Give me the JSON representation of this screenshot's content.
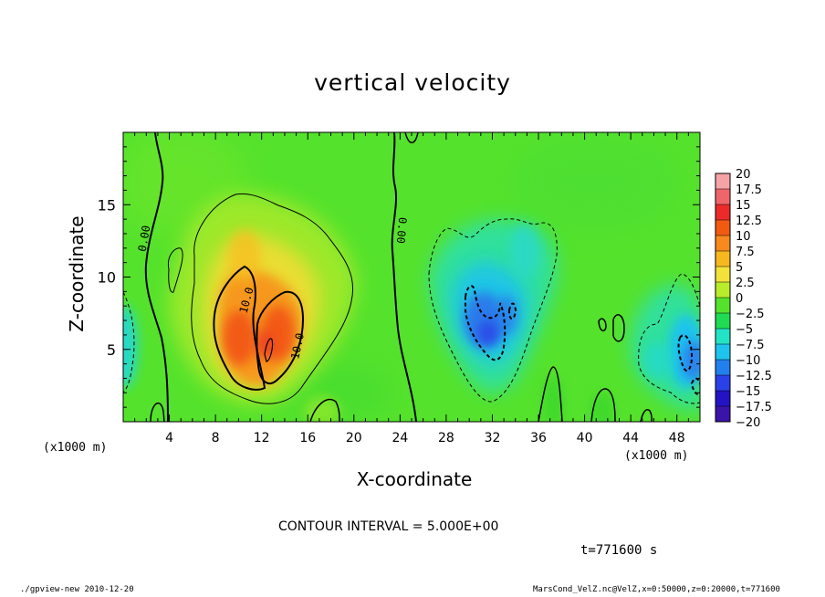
{
  "figure": {
    "program_line": "./gpview-new  2010-12-20",
    "file_line": "MarsCond_VelZ.nc@VelZ,x=0:50000,z=0:20000,t=771600",
    "contour_interval": "CONTOUR INTERVAL = 5.000E+00",
    "time_label": "t=771600 s",
    "x_unit": "(x1000 m)",
    "x_unit_right": "(x1000 m)"
  },
  "chart_data": {
    "type": "heatmap",
    "title": "vertical velocity",
    "xlabel": "X-coordinate",
    "ylabel": "Z-coordinate",
    "x_unit": "(x1000 m)",
    "xlim": [
      0,
      50
    ],
    "ylim": [
      0,
      20
    ],
    "x_ticks": [
      4,
      8,
      12,
      16,
      20,
      24,
      28,
      32,
      36,
      40,
      44,
      48
    ],
    "y_ticks": [
      5,
      10,
      15
    ],
    "colorbar": {
      "labels": [
        "20",
        "17.5",
        "15",
        "12.5",
        "10",
        "7.5",
        "5",
        "2.5",
        "0",
        "-2.5",
        "-5",
        "-7.5",
        "-10",
        "-12.5",
        "-15",
        "-17.5",
        "-20"
      ],
      "colors": [
        "#f6a3a6",
        "#f0656a",
        "#ec2a2a",
        "#f25a12",
        "#f7891e",
        "#f7b81f",
        "#f2e23a",
        "#b9ec2a",
        "#55e22c",
        "#1fdc52",
        "#22e4c5",
        "#1ec3ee",
        "#2280ee",
        "#2a40e8",
        "#2313c4",
        "#3a13a8",
        "#7a16c0"
      ]
    },
    "features": [
      {
        "kind": "updraft",
        "x": 12,
        "z": 6.5,
        "peak": 13
      },
      {
        "kind": "updraft",
        "x": 10.5,
        "z": 9,
        "peak": 6
      },
      {
        "kind": "downdraft",
        "x": 31.5,
        "z": 6.5,
        "peak": -11
      },
      {
        "kind": "downdraft",
        "x": 49.5,
        "z": 4.5,
        "peak": -9
      },
      {
        "kind": "downdraft",
        "x": 45,
        "z": 5,
        "peak": -6
      },
      {
        "kind": "downdraft",
        "x": 0.5,
        "z": 5,
        "peak": -5
      }
    ],
    "contour_labels": [
      {
        "text": "0.00",
        "x": 1.8,
        "z": 12.8,
        "angle": -80
      },
      {
        "text": "0.00",
        "x": 23.8,
        "z": 13,
        "angle": 95
      },
      {
        "text": "10.0",
        "x": 10.5,
        "z": 8.2,
        "angle": -75
      },
      {
        "text": "10.0",
        "x": 14.8,
        "z": 5.2,
        "angle": -78
      }
    ]
  }
}
